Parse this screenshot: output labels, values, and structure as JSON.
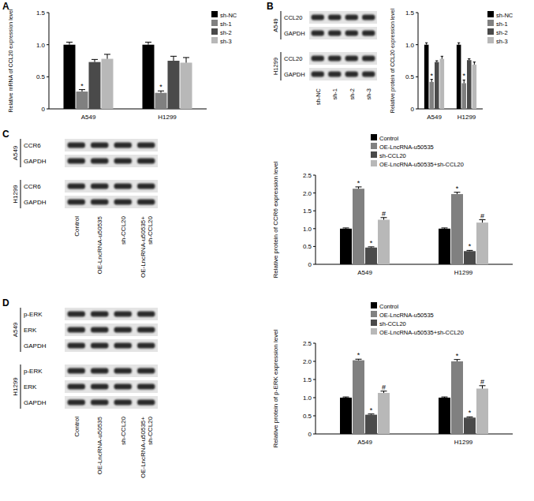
{
  "chart_data": [
    {
      "type": "bar",
      "panel": "A",
      "y_label": "Relative mRNA of CCL20 expression level",
      "categories": [
        "A549",
        "H1299"
      ],
      "ylim": [
        0,
        1.5
      ],
      "yticks": [
        0,
        0.5,
        {
          "value": 1,
          "label": "1.0"
        },
        1.5
      ],
      "grid": false,
      "legend": "right",
      "series": [
        {
          "name": "sh-NC",
          "color": "#000000",
          "values": [
            1.0,
            1.0
          ],
          "errors": [
            0.04,
            0.04
          ]
        },
        {
          "name": "sh-1",
          "color": "#808080",
          "values": [
            0.27,
            0.25
          ],
          "errors": [
            0.03,
            0.03
          ],
          "significance": [
            "*",
            "*"
          ]
        },
        {
          "name": "sh-2",
          "color": "#4a4a4a",
          "values": [
            0.73,
            0.75
          ],
          "errors": [
            0.04,
            0.07
          ]
        },
        {
          "name": "sh-3",
          "color": "#b8b8b8",
          "values": [
            0.78,
            0.72
          ],
          "errors": [
            0.07,
            0.08
          ]
        }
      ]
    },
    {
      "type": "bar",
      "y_label": "Relative protein of CCL20 expression level",
      "categories": [
        "A549",
        "H1299"
      ],
      "ylim": [
        0,
        1.5
      ],
      "yticks": [
        0,
        0.5,
        {
          "value": 1,
          "label": "1.0"
        },
        1.5
      ],
      "grid": false,
      "legend": "right",
      "series": [
        {
          "name": "sh-NC",
          "color": "#000000",
          "values": [
            1.0,
            1.0
          ],
          "errors": [
            0.03,
            0.03
          ]
        },
        {
          "name": "sh-1",
          "color": "#808080",
          "values": [
            0.42,
            0.4
          ],
          "errors": [
            0.04,
            0.05
          ],
          "significance": [
            "*",
            "*"
          ]
        },
        {
          "name": "sh-2",
          "color": "#4a4a4a",
          "values": [
            0.73,
            0.76
          ],
          "errors": [
            0.02,
            0.02
          ]
        },
        {
          "name": "sh-3",
          "color": "#b8b8b8",
          "values": [
            0.78,
            0.69
          ],
          "errors": [
            0.04,
            0.04
          ]
        }
      ]
    },
    {
      "type": "bar",
      "y_label": "Relative protein of CCR6 expression level",
      "categories": [
        "A549",
        "H1299"
      ],
      "ylim": [
        0,
        2.5
      ],
      "yticks": [
        0,
        0.5,
        {
          "value": 1,
          "label": "1.0"
        },
        1.5,
        {
          "value": 2,
          "label": "2.0"
        },
        2.5
      ],
      "grid": false,
      "legend": "top",
      "series": [
        {
          "name": "Control",
          "color": "#000000",
          "values": [
            1.0,
            1.0
          ],
          "errors": [
            0.02,
            0.02
          ]
        },
        {
          "name": "OE-LncRNA-u50535",
          "color": "#808080",
          "values": [
            2.12,
            1.97
          ],
          "errors": [
            0.05,
            0.05
          ],
          "significance": [
            "*",
            "*"
          ]
        },
        {
          "name": "sh-CCL20",
          "color": "#4a4a4a",
          "values": [
            0.47,
            0.37
          ],
          "errors": [
            0.02,
            0.02
          ],
          "significance": [
            "*",
            "*"
          ]
        },
        {
          "name": "OE-LncRNA-u50535+sh-CCL20",
          "color": "#b8b8b8",
          "values": [
            1.25,
            1.17
          ],
          "errors": [
            0.06,
            0.08
          ],
          "significance": [
            "#",
            "#"
          ]
        }
      ]
    },
    {
      "type": "bar",
      "y_label": "Relative protein of p-ERK expression level",
      "categories": [
        "A549",
        "H1299"
      ],
      "ylim": [
        0,
        2.5
      ],
      "yticks": [
        0,
        0.5,
        {
          "value": 1,
          "label": "1.0"
        },
        1.5,
        {
          "value": 2,
          "label": "2.0"
        },
        2.5
      ],
      "grid": false,
      "legend": "top",
      "series": [
        {
          "name": "Control",
          "color": "#000000",
          "values": [
            1.0,
            1.0
          ],
          "errors": [
            0.02,
            0.02
          ]
        },
        {
          "name": "OE-LncRNA-u50535",
          "color": "#808080",
          "values": [
            2.03,
            2.0
          ],
          "errors": [
            0.03,
            0.05
          ],
          "significance": [
            "*",
            "*"
          ]
        },
        {
          "name": "sh-CCL20",
          "color": "#4a4a4a",
          "values": [
            0.53,
            0.45
          ],
          "errors": [
            0.02,
            0.02
          ],
          "significance": [
            "*",
            "*"
          ]
        },
        {
          "name": "OE-LncRNA-u50535+sh-CCL20",
          "color": "#b8b8b8",
          "values": [
            1.13,
            1.25
          ],
          "errors": [
            0.05,
            0.08
          ],
          "significance": [
            "#",
            "#"
          ]
        }
      ]
    }
  ],
  "blots": [
    {
      "panel": "B",
      "groups": [
        {
          "label": "A549",
          "rows": [
            "CCL20",
            "GAPDH"
          ]
        },
        {
          "label": "H1299",
          "rows": [
            "CCL20",
            "GAPDH"
          ]
        }
      ],
      "lanes": [
        [
          "sh-NC"
        ],
        [
          "sh-1"
        ],
        [
          "sh-2"
        ],
        [
          "sh-3"
        ]
      ]
    },
    {
      "panel": "C",
      "groups": [
        {
          "label": "A549",
          "rows": [
            "CCR6",
            "GAPDH"
          ]
        },
        {
          "label": "H1299",
          "rows": [
            "CCR6",
            "GAPDH"
          ]
        }
      ],
      "lanes": [
        [
          "Control"
        ],
        [
          "OE-LncRNA-u50535"
        ],
        [
          "sh-CCL20"
        ],
        [
          "OE-LncRNA-u50535+",
          "sh-CCL20"
        ]
      ]
    },
    {
      "panel": "D",
      "groups": [
        {
          "label": "A549",
          "rows": [
            "p-ERK",
            "ERK",
            "GAPDH"
          ]
        },
        {
          "label": "H1299",
          "rows": [
            "p-ERK",
            "ERK",
            "GAPDH"
          ]
        }
      ],
      "lanes": [
        [
          "Control"
        ],
        [
          "OE-LncRNA-u50535"
        ],
        [
          "sh-CCL20"
        ],
        [
          "OE-LncRNA-u50535+",
          "sh-CCL20"
        ]
      ]
    }
  ]
}
